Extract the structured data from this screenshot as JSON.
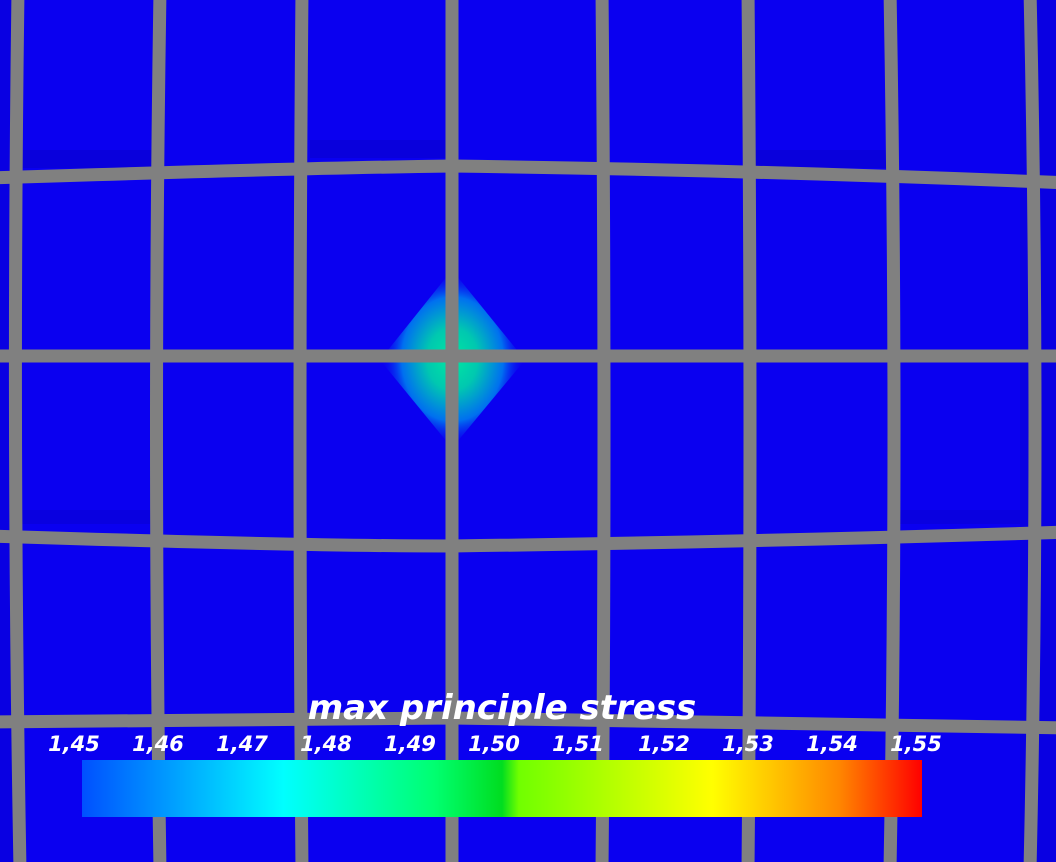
{
  "legend": {
    "title": "max principle stress",
    "ticks": [
      "1,45",
      "1,46",
      "1,47",
      "1,48",
      "1,49",
      "1,50",
      "1,51",
      "1,52",
      "1,53",
      "1,54",
      "1,55"
    ],
    "range": [
      1.45,
      1.55
    ],
    "colormap": [
      "#0050ff",
      "#00ffff",
      "#00ff70",
      "#00dd20",
      "#70ff00",
      "#ffff00",
      "#ff8800",
      "#ff0000"
    ]
  },
  "scene": {
    "background_color": "#0a00f0",
    "mesh_color": "#808080",
    "hotspot_colors": [
      "#00d890",
      "#00b0e0"
    ]
  }
}
